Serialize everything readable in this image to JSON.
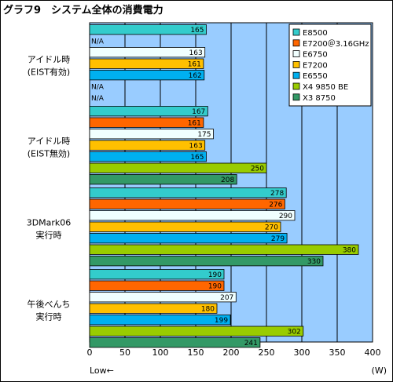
{
  "title": "グラフ9　システム全体の消費電力",
  "chart_data": {
    "type": "bar",
    "orientation": "horizontal",
    "title": "グラフ9　システム全体の消費電力",
    "xlabel_left": "Low←",
    "xlabel_unit": "(W)",
    "xlim": [
      0,
      400
    ],
    "xticks": [
      0,
      50,
      100,
      150,
      200,
      250,
      300,
      350,
      400
    ],
    "grid": true,
    "legend_position": "top-right",
    "groups": [
      {
        "label_lines": [
          "アイドル時",
          "(EIST有効)"
        ],
        "bars": [
          {
            "series": "E8500",
            "value": 165,
            "text": "165"
          },
          {
            "series": "E7200＠3.16GHz",
            "value": null,
            "text": "N/A"
          },
          {
            "series": "E6750",
            "value": 163,
            "text": "163"
          },
          {
            "series": "E7200",
            "value": 161,
            "text": "161"
          },
          {
            "series": "E6550",
            "value": 162,
            "text": "162"
          },
          {
            "series": "X4 9850 BE",
            "value": null,
            "text": "N/A"
          },
          {
            "series": "X3 8750",
            "value": null,
            "text": "N/A"
          }
        ]
      },
      {
        "label_lines": [
          "アイドル時",
          "(EIST無効)"
        ],
        "bars": [
          {
            "series": "E8500",
            "value": 167,
            "text": "167"
          },
          {
            "series": "E7200＠3.16GHz",
            "value": 161,
            "text": "161"
          },
          {
            "series": "E6750",
            "value": 175,
            "text": "175"
          },
          {
            "series": "E7200",
            "value": 163,
            "text": "163"
          },
          {
            "series": "E6550",
            "value": 165,
            "text": "165"
          },
          {
            "series": "X4 9850 BE",
            "value": 250,
            "text": "250"
          },
          {
            "series": "X3 8750",
            "value": 208,
            "text": "208"
          }
        ]
      },
      {
        "label_lines": [
          "3DMark06",
          "実行時"
        ],
        "bars": [
          {
            "series": "E8500",
            "value": 278,
            "text": "278"
          },
          {
            "series": "E7200＠3.16GHz",
            "value": 276,
            "text": "276"
          },
          {
            "series": "E6750",
            "value": 290,
            "text": "290"
          },
          {
            "series": "E7200",
            "value": 270,
            "text": "270"
          },
          {
            "series": "E6550",
            "value": 279,
            "text": "279"
          },
          {
            "series": "X4 9850 BE",
            "value": 380,
            "text": "380"
          },
          {
            "series": "X3 8750",
            "value": 330,
            "text": "330"
          }
        ]
      },
      {
        "label_lines": [
          "午後べんち",
          "実行時"
        ],
        "bars": [
          {
            "series": "E8500",
            "value": 190,
            "text": "190"
          },
          {
            "series": "E7200＠3.16GHz",
            "value": 190,
            "text": "190"
          },
          {
            "series": "E6750",
            "value": 207,
            "text": "207"
          },
          {
            "series": "E7200",
            "value": 180,
            "text": "180"
          },
          {
            "series": "E6550",
            "value": 199,
            "text": "199"
          },
          {
            "series": "X4 9850 BE",
            "value": 302,
            "text": "302"
          },
          {
            "series": "X3 8750",
            "value": 241,
            "text": "241"
          }
        ]
      }
    ],
    "series": [
      {
        "name": "E8500",
        "color": "#33CCCC"
      },
      {
        "name": "E7200＠3.16GHz",
        "color": "#FF6600"
      },
      {
        "name": "E6750",
        "color": "#F0FFFF"
      },
      {
        "name": "E7200",
        "color": "#FFC000"
      },
      {
        "name": "E6550",
        "color": "#00B0F0"
      },
      {
        "name": "X4 9850 BE",
        "color": "#99CC00"
      },
      {
        "name": "X3 8750",
        "color": "#339966"
      }
    ],
    "plot_background": "#99CCFF"
  }
}
